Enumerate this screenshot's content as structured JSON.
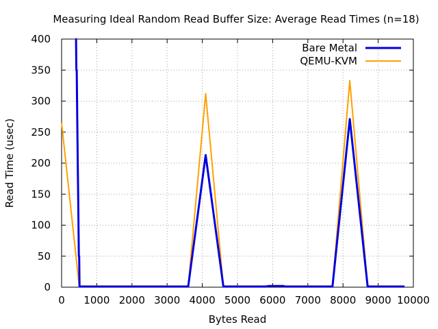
{
  "chart_data": {
    "type": "line",
    "title": "Measuring Ideal Random Read Buffer Size: Average Read Times (n=18)",
    "xlabel": "Bytes Read",
    "ylabel": "Read Time (usec)",
    "xlim": [
      0,
      10000
    ],
    "ylim": [
      0,
      400
    ],
    "x_ticks": [
      0,
      1000,
      2000,
      3000,
      4000,
      5000,
      6000,
      7000,
      8000,
      9000,
      10000
    ],
    "y_ticks": [
      0,
      50,
      100,
      150,
      200,
      250,
      300,
      350,
      400
    ],
    "x_tick_labels": [
      "0",
      "1000",
      "2000",
      "3000",
      "4000",
      "5000",
      "6000",
      "7000",
      "8000",
      "9000",
      "10000"
    ],
    "y_tick_labels": [
      "0",
      "50",
      "100",
      "150",
      "200",
      "250",
      "300",
      "350",
      "400"
    ],
    "grid": true,
    "legend_position": "top-right",
    "series": [
      {
        "name": "Bare Metal",
        "color": "#0000e0",
        "x": [
          400,
          410,
          420,
          430,
          440,
          450,
          460,
          470,
          480,
          490,
          500,
          510,
          600,
          1000,
          2000,
          3000,
          3600,
          4096,
          4600,
          5000,
          5800,
          5900,
          6300,
          6350,
          7000,
          7700,
          8192,
          8700,
          9000,
          9750
        ],
        "y": [
          400,
          400,
          350,
          350,
          300,
          250,
          200,
          150,
          100,
          50,
          50,
          1,
          1,
          1,
          1,
          1,
          1,
          213,
          1,
          1,
          1,
          2,
          2,
          1,
          1,
          1,
          271,
          1,
          1,
          1
        ]
      },
      {
        "name": "QEMU-KVM",
        "color": "#ffa000",
        "x": [
          0,
          500,
          1000,
          2000,
          3000,
          3600,
          4096,
          4600,
          5000,
          6000,
          7000,
          7700,
          8192,
          8700,
          9000,
          9750
        ],
        "y": [
          265,
          2,
          2,
          2,
          2,
          2,
          312,
          2,
          2,
          2,
          2,
          2,
          333,
          2,
          2,
          2
        ]
      }
    ]
  }
}
